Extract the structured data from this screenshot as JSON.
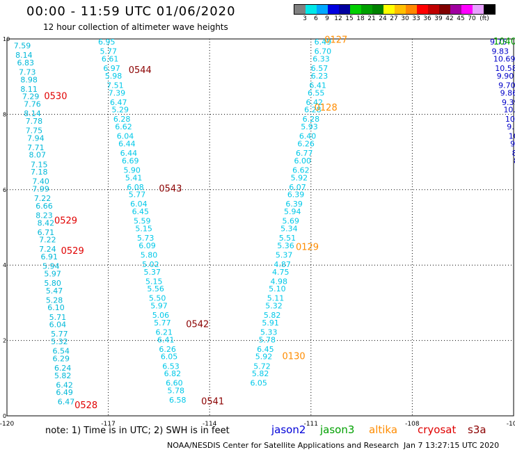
{
  "header": {
    "title": "00:00 - 11:59 UTC 01/06/2020",
    "subtitle": "12 hour collection of altimeter wave heights"
  },
  "legend": {
    "colors": [
      "#808080",
      "#00e8e8",
      "#00a8ff",
      "#0000e0",
      "#0000a0",
      "#00d000",
      "#00a000",
      "#008000",
      "#ffff00",
      "#ffc000",
      "#ff8800",
      "#ff0000",
      "#c00000",
      "#800000",
      "#a000a0",
      "#ff00ff",
      "#e8a0ff",
      "#000000"
    ],
    "labels": [
      "3",
      "6",
      "9",
      "12",
      "15",
      "18",
      "21",
      "24",
      "27",
      "30",
      "33",
      "36",
      "39",
      "42",
      "45",
      "70",
      "(ft)"
    ]
  },
  "note": "note:  1) Time is in UTC;  2) SWH is in feet",
  "satellites": [
    {
      "name": "jason2",
      "color": "#0000d8"
    },
    {
      "name": "jason3",
      "color": "#00a000"
    },
    {
      "name": "altika",
      "color": "#ff8c00"
    },
    {
      "name": "cryosat",
      "color": "#e00000"
    },
    {
      "name": "s3a",
      "color": "#8b0000"
    }
  ],
  "footer": "NOAA/NESDIS Center for Satellite Applications and Research",
  "footer_date": "Jan  7 13:27:15 UTC 2020",
  "chart_data": {
    "type": "scatter",
    "xlim": [
      -120,
      -105
    ],
    "ylim": [
      0,
      10
    ],
    "xticks": [
      "-120",
      "-117",
      "-114",
      "-111",
      "-108",
      "-105"
    ],
    "yticks": [
      "0",
      "2",
      "4",
      "6",
      "8",
      "10"
    ],
    "grid": true,
    "series": [
      {
        "color": "#00b8d8",
        "points": [
          [
            -119.8,
            9.75,
            "7.59"
          ],
          [
            -119.75,
            9.5,
            "8.14"
          ],
          [
            -119.7,
            9.3,
            "6.83"
          ],
          [
            -119.65,
            9.05,
            "7.73"
          ],
          [
            -119.6,
            8.85,
            "8.98"
          ],
          [
            -119.6,
            8.6,
            "8.11"
          ],
          [
            -119.55,
            8.4,
            "7.29"
          ],
          [
            -119.5,
            8.2,
            "7.76"
          ],
          [
            -119.5,
            7.95,
            "8.14"
          ],
          [
            -119.45,
            7.75,
            "7.78"
          ],
          [
            -119.45,
            7.5,
            "7.75"
          ],
          [
            -119.4,
            7.3,
            "7.94"
          ],
          [
            -119.4,
            7.05,
            "7.71"
          ],
          [
            -119.35,
            6.85,
            "8.07"
          ],
          [
            -119.3,
            6.6,
            "7.15"
          ],
          [
            -119.3,
            6.4,
            "7.18"
          ],
          [
            -119.25,
            6.15,
            "7.40"
          ],
          [
            -119.25,
            5.95,
            "7.99"
          ],
          [
            -119.2,
            5.7,
            "7.22"
          ],
          [
            -119.15,
            5.5,
            "6.66"
          ],
          [
            -119.15,
            5.25,
            "8.23"
          ],
          [
            -119.1,
            5.05,
            "8.42"
          ],
          [
            -119.1,
            4.8,
            "6.71"
          ],
          [
            -119.05,
            4.6,
            "7.22"
          ],
          [
            -119.05,
            4.35,
            "7.24"
          ],
          [
            -119.0,
            4.15,
            "6.91"
          ],
          [
            -118.95,
            3.9,
            "5.94"
          ],
          [
            -118.9,
            3.7,
            "5.97"
          ],
          [
            -118.9,
            3.45,
            "5.80"
          ],
          [
            -118.85,
            3.25,
            "5.47"
          ],
          [
            -118.85,
            3.0,
            "5.28"
          ],
          [
            -118.8,
            2.8,
            "6.10"
          ],
          [
            -118.75,
            2.55,
            "5.71"
          ],
          [
            -118.75,
            2.35,
            "6.04"
          ],
          [
            -118.7,
            2.1,
            "5.77"
          ],
          [
            -118.7,
            1.9,
            "5.32"
          ],
          [
            -118.65,
            1.65,
            "6.54"
          ],
          [
            -118.65,
            1.45,
            "6.29"
          ],
          [
            -118.6,
            1.2,
            "6.24"
          ],
          [
            -118.6,
            1.0,
            "5.82"
          ],
          [
            -118.55,
            0.75,
            "6.42"
          ],
          [
            -118.55,
            0.55,
            "6.49"
          ],
          [
            -118.5,
            0.3,
            "6.47"
          ]
        ]
      },
      {
        "color": "#00c8e8",
        "points": [
          [
            -117.3,
            9.85,
            "6.95"
          ],
          [
            -117.25,
            9.6,
            "5.77"
          ],
          [
            -117.2,
            9.4,
            "6.61"
          ],
          [
            -117.15,
            9.15,
            "6.97"
          ],
          [
            -117.1,
            8.95,
            "5.98"
          ],
          [
            -117.05,
            8.7,
            "7.51"
          ],
          [
            -117.0,
            8.5,
            "7.39"
          ],
          [
            -116.95,
            8.25,
            "6.47"
          ],
          [
            -116.9,
            8.05,
            "5.29"
          ],
          [
            -116.85,
            7.8,
            "6.28"
          ],
          [
            -116.8,
            7.6,
            "6.62"
          ],
          [
            -116.75,
            7.35,
            "6.04"
          ],
          [
            -116.7,
            7.15,
            "6.44"
          ],
          [
            -116.65,
            6.9,
            "6.44"
          ],
          [
            -116.6,
            6.7,
            "6.69"
          ],
          [
            -116.55,
            6.45,
            "5.90"
          ],
          [
            -116.5,
            6.25,
            "5.41"
          ],
          [
            -116.45,
            6.0,
            "6.08"
          ],
          [
            -116.4,
            5.8,
            "5.77"
          ],
          [
            -116.35,
            5.55,
            "6.04"
          ],
          [
            -116.3,
            5.35,
            "6.45"
          ],
          [
            -116.25,
            5.1,
            "5.59"
          ],
          [
            -116.2,
            4.9,
            "5.15"
          ],
          [
            -116.15,
            4.65,
            "5.73"
          ],
          [
            -116.1,
            4.45,
            "6.09"
          ],
          [
            -116.05,
            4.2,
            "5.80"
          ],
          [
            -116.0,
            3.95,
            "5.02"
          ],
          [
            -115.95,
            3.75,
            "5.37"
          ],
          [
            -115.9,
            3.5,
            "5.15"
          ],
          [
            -115.85,
            3.3,
            "5.56"
          ],
          [
            -115.8,
            3.05,
            "5.50"
          ],
          [
            -115.75,
            2.85,
            "5.97"
          ],
          [
            -115.7,
            2.6,
            "5.06"
          ],
          [
            -115.65,
            2.4,
            "5.77"
          ],
          [
            -115.6,
            2.15,
            "6.21"
          ],
          [
            -115.55,
            1.95,
            "6.41"
          ],
          [
            -115.5,
            1.7,
            "6.26"
          ],
          [
            -115.45,
            1.5,
            "6.05"
          ],
          [
            -115.4,
            1.25,
            "6.53"
          ],
          [
            -115.35,
            1.05,
            "6.82"
          ],
          [
            -115.3,
            0.8,
            "6.60"
          ],
          [
            -115.25,
            0.6,
            "5.78"
          ],
          [
            -115.2,
            0.35,
            "6.58"
          ]
        ]
      },
      {
        "color": "#00c8e8",
        "points": [
          [
            -110.9,
            9.85,
            "6.49"
          ],
          [
            -110.9,
            9.6,
            "6.70"
          ],
          [
            -110.95,
            9.4,
            "6.33"
          ],
          [
            -111.0,
            9.15,
            "6.57"
          ],
          [
            -111.0,
            8.95,
            "6.23"
          ],
          [
            -111.05,
            8.7,
            "6.41"
          ],
          [
            -111.1,
            8.5,
            "6.55"
          ],
          [
            -111.15,
            8.25,
            "6.42"
          ],
          [
            -111.2,
            8.05,
            "6.28"
          ],
          [
            -111.25,
            7.8,
            "6.28"
          ],
          [
            -111.3,
            7.6,
            "5.93"
          ],
          [
            -111.35,
            7.35,
            "6.40"
          ],
          [
            -111.4,
            7.15,
            "6.26"
          ],
          [
            -111.45,
            6.9,
            "6.77"
          ],
          [
            -111.5,
            6.7,
            "6.00"
          ],
          [
            -111.55,
            6.45,
            "6.62"
          ],
          [
            -111.6,
            6.25,
            "5.92"
          ],
          [
            -111.65,
            6.0,
            "6.07"
          ],
          [
            -111.7,
            5.8,
            "6.39"
          ],
          [
            -111.75,
            5.55,
            "6.39"
          ],
          [
            -111.8,
            5.35,
            "5.94"
          ],
          [
            -111.85,
            5.1,
            "5.69"
          ],
          [
            -111.9,
            4.9,
            "5.34"
          ],
          [
            -111.95,
            4.65,
            "5.51"
          ],
          [
            -112.0,
            4.45,
            "5.36"
          ],
          [
            -112.05,
            4.2,
            "5.37"
          ],
          [
            -112.1,
            3.95,
            "4.87"
          ],
          [
            -112.15,
            3.75,
            "4.75"
          ],
          [
            -112.2,
            3.5,
            "4.98"
          ],
          [
            -112.25,
            3.3,
            "5.10"
          ],
          [
            -112.3,
            3.05,
            "5.11"
          ],
          [
            -112.35,
            2.85,
            "5.32"
          ],
          [
            -112.4,
            2.6,
            "5.82"
          ],
          [
            -112.45,
            2.4,
            "5.91"
          ],
          [
            -112.5,
            2.15,
            "5.33"
          ],
          [
            -112.55,
            1.95,
            "5.78"
          ],
          [
            -112.6,
            1.7,
            "6.45"
          ],
          [
            -112.65,
            1.5,
            "5.92"
          ],
          [
            -112.7,
            1.25,
            "5.72"
          ],
          [
            -112.75,
            1.05,
            "5.82"
          ],
          [
            -112.8,
            0.8,
            "6.05"
          ]
        ]
      },
      {
        "color": "#0000c8",
        "points": [
          [
            -105.7,
            9.85,
            "9.75"
          ],
          [
            -105.65,
            9.6,
            "9.83"
          ],
          [
            -105.6,
            9.4,
            "10.69"
          ],
          [
            -105.55,
            9.15,
            "10.58"
          ],
          [
            -105.5,
            8.95,
            "9.90"
          ],
          [
            -105.45,
            8.7,
            "9.70"
          ],
          [
            -105.4,
            8.5,
            "9.86"
          ],
          [
            -105.35,
            8.25,
            "9.39"
          ],
          [
            -105.3,
            8.05,
            "10.30"
          ],
          [
            -105.25,
            7.8,
            "10.97"
          ],
          [
            -105.2,
            7.6,
            "9.11"
          ],
          [
            -105.15,
            7.35,
            "10.16"
          ],
          [
            -105.1,
            7.15,
            "9.61"
          ],
          [
            -105.05,
            6.9,
            "8.93"
          ],
          [
            -105.0,
            6.7,
            "8.5"
          ],
          [
            -104.95,
            6.45,
            "7.8"
          ],
          [
            -104.9,
            6.25,
            "8."
          ],
          [
            -104.85,
            6.0,
            "7"
          ],
          [
            -104.8,
            5.8,
            "6"
          ]
        ]
      }
    ],
    "time_labels": [
      [
        -118.9,
        8.4,
        "0530",
        "#e00000"
      ],
      [
        -118.6,
        5.1,
        "0529",
        "#e00000"
      ],
      [
        -118.4,
        4.3,
        "0529",
        "#e00000"
      ],
      [
        -118.0,
        0.2,
        "0528",
        "#e00000"
      ],
      [
        -116.4,
        9.1,
        "0544",
        "#8b0000"
      ],
      [
        -115.5,
        5.95,
        "0543",
        "#8b0000"
      ],
      [
        -114.7,
        2.35,
        "0542",
        "#8b0000"
      ],
      [
        -114.25,
        0.3,
        "0541",
        "#8b0000"
      ],
      [
        -110.6,
        9.9,
        "0127",
        "#ff8c00"
      ],
      [
        -110.9,
        8.1,
        "0128",
        "#ff8c00"
      ],
      [
        -111.45,
        4.4,
        "0129",
        "#ff8c00"
      ],
      [
        -111.85,
        1.5,
        "0130",
        "#ff8c00"
      ],
      [
        -105.6,
        9.85,
        "1040",
        "#00a000"
      ]
    ]
  }
}
